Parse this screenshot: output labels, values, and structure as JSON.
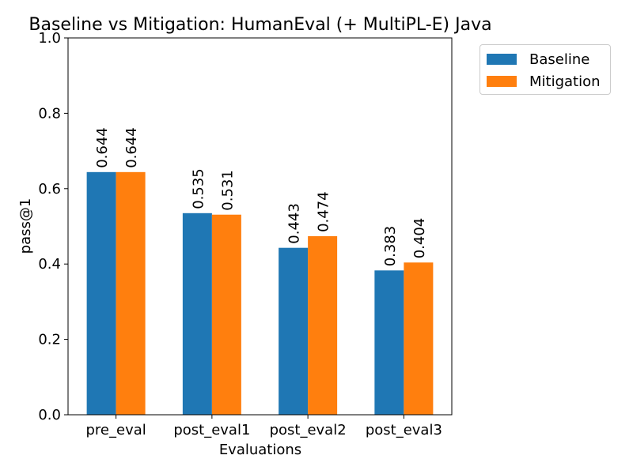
{
  "chart_data": {
    "type": "bar",
    "title": "Baseline vs Mitigation: HumanEval (+ MultiPL-E) Java",
    "xlabel": "Evaluations",
    "ylabel": "pass@1",
    "categories": [
      "pre_eval",
      "post_eval1",
      "post_eval2",
      "post_eval3"
    ],
    "ylim": [
      0,
      1.0
    ],
    "yticks": [
      "0.0",
      "0.2",
      "0.4",
      "0.6",
      "0.8",
      "1.0"
    ],
    "series": [
      {
        "name": "Baseline",
        "color": "#1f77b4",
        "values": [
          0.644,
          0.535,
          0.443,
          0.383
        ]
      },
      {
        "name": "Mitigation",
        "color": "#ff7f0e",
        "values": [
          0.644,
          0.531,
          0.474,
          0.404
        ]
      }
    ],
    "legend_position": "outside-top-right",
    "grid": false
  }
}
